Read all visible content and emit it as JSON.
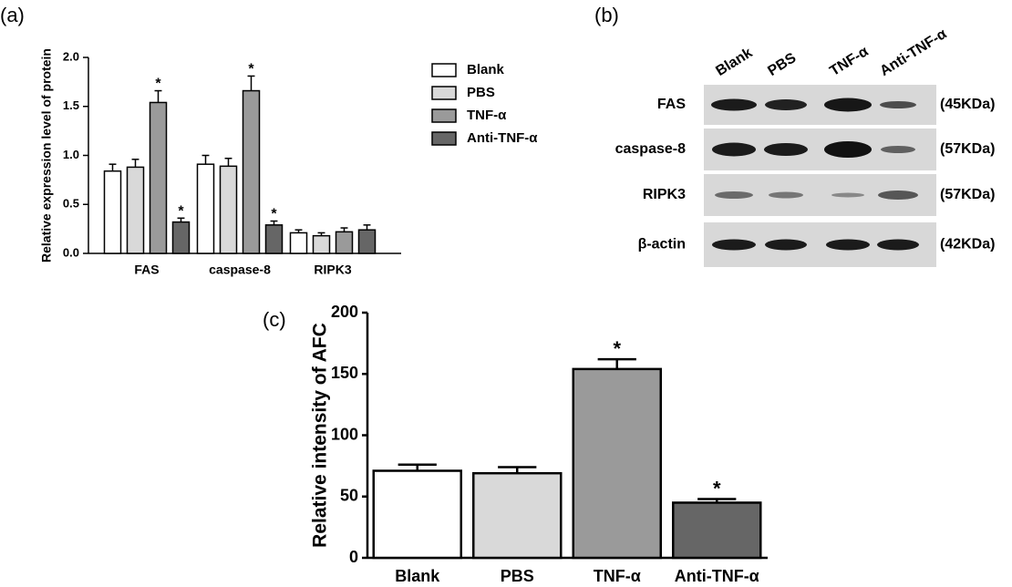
{
  "chart_data": [
    {
      "type": "bar",
      "panel_label": "(a)",
      "ylabel": "Relative expression level of protein",
      "categories": [
        "FAS",
        "caspase-8",
        "RIPK3"
      ],
      "series": [
        {
          "name": "Blank",
          "color": "#ffffff",
          "values": [
            0.84,
            0.91,
            0.21
          ],
          "errors": [
            0.07,
            0.09,
            0.03
          ],
          "annotations": [
            null,
            null,
            null
          ]
        },
        {
          "name": "PBS",
          "color": "#d9d9d9",
          "values": [
            0.88,
            0.89,
            0.18
          ],
          "errors": [
            0.08,
            0.08,
            0.03
          ],
          "annotations": [
            null,
            null,
            null
          ]
        },
        {
          "name": "TNF-α",
          "color": "#9a9a9a",
          "values": [
            1.54,
            1.66,
            0.22
          ],
          "errors": [
            0.12,
            0.15,
            0.04
          ],
          "annotations": [
            "*",
            "*",
            null
          ]
        },
        {
          "name": "Anti-TNF-α",
          "color": "#666666",
          "values": [
            0.32,
            0.29,
            0.24
          ],
          "errors": [
            0.04,
            0.04,
            0.05
          ],
          "annotations": [
            "*",
            "*",
            null
          ]
        }
      ],
      "ylim": [
        0,
        2.0
      ],
      "yticks": [
        {
          "value": 0,
          "label": "0.0"
        },
        0.5,
        {
          "value": 1.0,
          "label": "1.0"
        },
        1.5,
        {
          "value": 2.0,
          "label": "2.0"
        }
      ]
    },
    {
      "type": "bar",
      "panel_label": "(c)",
      "ylabel": "Relative intensity of AFC",
      "categories": [
        "Blank",
        "PBS",
        "TNF-α",
        "Anti-TNF-α"
      ],
      "values": [
        71,
        69,
        154,
        45
      ],
      "errors": [
        5,
        5,
        8,
        3
      ],
      "colors": [
        "#ffffff",
        "#d9d9d9",
        "#9a9a9a",
        "#666666"
      ],
      "annotations": [
        null,
        null,
        "*",
        "*"
      ],
      "ylim": [
        0,
        200
      ],
      "yticks": [
        0,
        50,
        100,
        150,
        200
      ]
    }
  ],
  "blot": {
    "panel_label": "(b)",
    "lanes": [
      "Blank",
      "PBS",
      "TNF-α",
      "Anti-TNF-α"
    ],
    "rows": [
      {
        "protein": "FAS",
        "size": "(45KDa)"
      },
      {
        "protein": "caspase-8",
        "size": "(57KDa)"
      },
      {
        "protein": "RIPK3",
        "size": "(57KDa)"
      },
      {
        "protein": "β-actin",
        "size": "(42KDa)"
      }
    ]
  }
}
